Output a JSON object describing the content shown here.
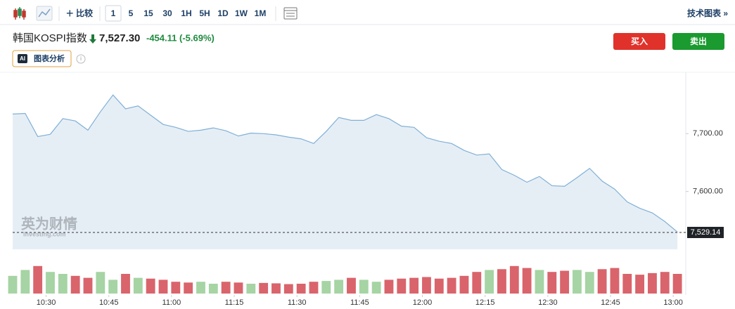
{
  "toolbar": {
    "compare": "比较",
    "intervals": [
      "1",
      "5",
      "15",
      "30",
      "1H",
      "5H",
      "1D",
      "1W",
      "1M"
    ],
    "technical": "技术图表 »"
  },
  "header": {
    "name": "韩国KOSPI指数",
    "price": "7,527.30",
    "change": "-454.11 (-5.69%)",
    "buy": "买入",
    "sell": "卖出",
    "ai_badge": "AI",
    "ai_button": "图表分析",
    "watermark": "英为财情",
    "watermark_sub": "Investing.com"
  },
  "chart_data": [
    {
      "type": "area",
      "color": "#7fb0d8",
      "fill": "#e6eef5",
      "x": [
        622,
        625,
        628,
        631,
        634,
        637,
        640,
        643,
        646,
        649,
        652,
        655,
        658,
        661,
        664,
        667,
        670,
        673,
        676,
        679,
        682,
        685,
        688,
        691,
        694,
        697,
        700,
        703,
        706,
        709,
        712,
        715,
        718,
        721,
        724,
        727,
        730,
        733,
        736,
        739,
        742,
        745,
        748,
        751,
        754,
        757,
        760,
        763,
        766,
        769,
        772,
        775,
        778,
        781
      ],
      "values": [
        7734,
        7735,
        7695,
        7699,
        7726,
        7722,
        7706,
        7738,
        7767,
        7743,
        7748,
        7732,
        7716,
        7711,
        7704,
        7706,
        7710,
        7705,
        7696,
        7701,
        7700,
        7698,
        7694,
        7691,
        7683,
        7704,
        7728,
        7723,
        7723,
        7733,
        7726,
        7713,
        7711,
        7693,
        7687,
        7683,
        7671,
        7663,
        7665,
        7638,
        7628,
        7616,
        7626,
        7610,
        7609,
        7624,
        7640,
        7618,
        7604,
        7582,
        7571,
        7563,
        7548,
        7530
      ],
      "xlim": [
        622,
        783
      ],
      "xticks": [
        {
          "value": 630,
          "label": "10:30"
        },
        {
          "value": 645,
          "label": "10:45"
        },
        {
          "value": 660,
          "label": "11:00"
        },
        {
          "value": 675,
          "label": "11:15"
        },
        {
          "value": 690,
          "label": "11:30"
        },
        {
          "value": 705,
          "label": "11:45"
        },
        {
          "value": 720,
          "label": "12:00"
        },
        {
          "value": 735,
          "label": "12:15"
        },
        {
          "value": 750,
          "label": "12:30"
        },
        {
          "value": 765,
          "label": "12:45"
        },
        {
          "value": 780,
          "label": "13:00"
        }
      ],
      "ylim": [
        7500,
        7800
      ],
      "yticks": [
        {
          "value": 7600,
          "label": "7,600.00"
        },
        {
          "value": 7700,
          "label": "7,700.00"
        }
      ],
      "last_price": 7529.14,
      "last_price_label": "7,529.14"
    },
    {
      "type": "bar",
      "up_color": "#a6d4a4",
      "down_color": "#d9646c",
      "ylim": [
        0,
        100
      ],
      "values": [
        45,
        60,
        70,
        55,
        50,
        45,
        40,
        55,
        35,
        50,
        40,
        38,
        35,
        30,
        28,
        30,
        25,
        30,
        28,
        25,
        27,
        26,
        24,
        25,
        30,
        32,
        35,
        40,
        35,
        30,
        35,
        38,
        40,
        42,
        38,
        40,
        45,
        55,
        60,
        62,
        70,
        65,
        60,
        55,
        58,
        60,
        55,
        62,
        65,
        50,
        48,
        52,
        55,
        50
      ]
    }
  ]
}
